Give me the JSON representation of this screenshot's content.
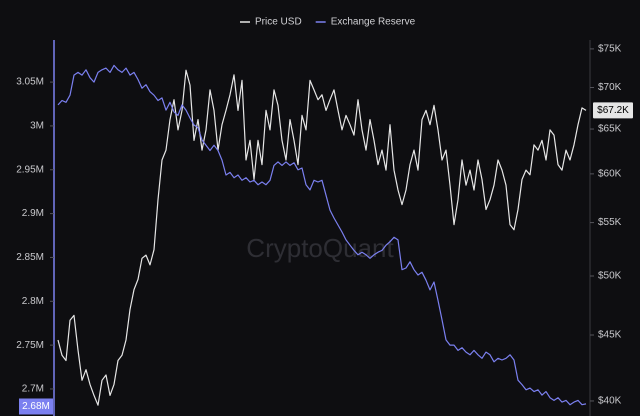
{
  "chart_data": {
    "type": "line",
    "watermark": "CryptoQuant",
    "legend": "top",
    "grid": false,
    "ylim": [
      2676000,
      3098000
    ],
    "yticks": [
      {
        "value": 2700000,
        "label": "2.7M"
      },
      {
        "value": 2750000,
        "label": "2.75M"
      },
      {
        "value": 2800000,
        "label": "2.8M"
      },
      {
        "value": 2850000,
        "label": "2.85M"
      },
      {
        "value": 2900000,
        "label": "2.9M"
      },
      {
        "value": 2950000,
        "label": "2.95M"
      },
      {
        "value": 3000000,
        "label": "3M"
      },
      {
        "value": 3050000,
        "label": "3.05M"
      }
    ],
    "y2lim": [
      39360,
      76200
    ],
    "y2scale": "log",
    "y2ticks": [
      {
        "value": 40000,
        "label": "$40K"
      },
      {
        "value": 45000,
        "label": "$45K"
      },
      {
        "value": 50000,
        "label": "$50K"
      },
      {
        "value": 55000,
        "label": "$55K"
      },
      {
        "value": 60000,
        "label": "$60K"
      },
      {
        "value": 65000,
        "label": "$65K"
      },
      {
        "value": 70000,
        "label": "$70K"
      },
      {
        "value": 75000,
        "label": "$75K"
      }
    ],
    "series": [
      {
        "name": "Price USD",
        "color": "#e6e6e6",
        "axis": "y2",
        "values": [
          44600,
          43400,
          43000,
          46200,
          46600,
          43800,
          41500,
          42300,
          41200,
          40400,
          39700,
          41500,
          41900,
          40400,
          41200,
          43000,
          43400,
          44600,
          47100,
          48800,
          49700,
          51600,
          51900,
          51000,
          52400,
          57300,
          61500,
          62600,
          66100,
          68500,
          64900,
          67200,
          72200,
          70300,
          63700,
          66100,
          62600,
          64900,
          69700,
          67200,
          62600,
          65500,
          67200,
          69100,
          71600,
          67200,
          70900,
          61500,
          63700,
          59400,
          63700,
          61000,
          67200,
          64900,
          69700,
          67800,
          63700,
          61500,
          66100,
          63700,
          61000,
          66600,
          64900,
          70900,
          69700,
          68500,
          69100,
          67200,
          68500,
          69700,
          67200,
          64900,
          66600,
          65500,
          64300,
          68500,
          64900,
          62600,
          66100,
          63700,
          61000,
          62600,
          60400,
          65500,
          60400,
          58300,
          56800,
          58300,
          61000,
          62600,
          60400,
          66100,
          67200,
          65500,
          67800,
          64900,
          61500,
          62600,
          58800,
          54800,
          57300,
          61500,
          58800,
          60400,
          58300,
          61500,
          59400,
          56300,
          57300,
          58800,
          61500,
          60400,
          58800,
          54800,
          54300,
          56300,
          59400,
          60400,
          59900,
          63200,
          62600,
          63700,
          61500,
          64900,
          64300,
          61000,
          60400,
          62600,
          61500,
          63200,
          65500,
          67500,
          67200
        ]
      },
      {
        "name": "Exchange Reserve",
        "color": "#7b80f0",
        "axis": "y",
        "values": [
          3024000,
          3029000,
          3027000,
          3035000,
          3058000,
          3061000,
          3058000,
          3064000,
          3055000,
          3050000,
          3061000,
          3064000,
          3066000,
          3061000,
          3069000,
          3064000,
          3061000,
          3066000,
          3058000,
          3061000,
          3053000,
          3043000,
          3047000,
          3039000,
          3035000,
          3029000,
          3032000,
          3018000,
          3027000,
          3016000,
          3012000,
          3024000,
          3018000,
          3009000,
          3001000,
          2998000,
          2984000,
          2978000,
          2972000,
          2978000,
          2972000,
          2961000,
          2944000,
          2947000,
          2941000,
          2944000,
          2938000,
          2941000,
          2936000,
          2938000,
          2933000,
          2936000,
          2933000,
          2938000,
          2955000,
          2959000,
          2955000,
          2959000,
          2955000,
          2958000,
          2950000,
          2952000,
          2933000,
          2927000,
          2938000,
          2936000,
          2938000,
          2921000,
          2904000,
          2895000,
          2887000,
          2879000,
          2870000,
          2864000,
          2858000,
          2853000,
          2856000,
          2853000,
          2849000,
          2853000,
          2856000,
          2858000,
          2864000,
          2868000,
          2873000,
          2870000,
          2836000,
          2838000,
          2845000,
          2836000,
          2830000,
          2833000,
          2824000,
          2813000,
          2822000,
          2801000,
          2779000,
          2756000,
          2750000,
          2750000,
          2744000,
          2747000,
          2742000,
          2739000,
          2744000,
          2739000,
          2735000,
          2742000,
          2739000,
          2731000,
          2735000,
          2733000,
          2735000,
          2739000,
          2733000,
          2710000,
          2705000,
          2699000,
          2701000,
          2697000,
          2699000,
          2693000,
          2697000,
          2690000,
          2687000,
          2690000,
          2685000,
          2687000,
          2682000,
          2685000,
          2687000,
          2682000,
          2683000
        ]
      }
    ],
    "annotations": [
      {
        "value": 2680000,
        "label": "2.68M",
        "axis": "y"
      },
      {
        "value": 67200,
        "label": "$67.2K",
        "axis": "y2"
      }
    ]
  }
}
